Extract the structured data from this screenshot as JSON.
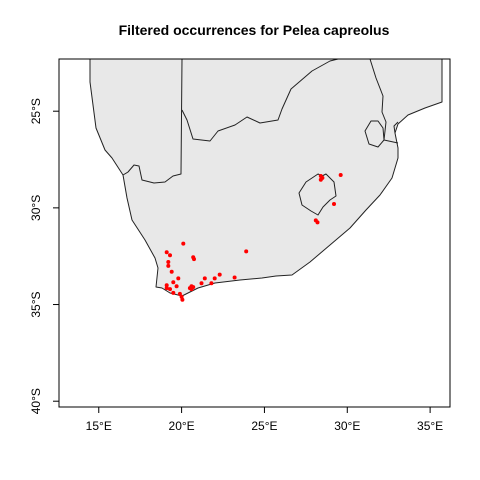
{
  "chart_data": {
    "type": "scatter",
    "title": "Filtered occurrences for Pelea capreolus",
    "xlabel": "",
    "ylabel": "",
    "xlim": [
      12.6,
      36.2
    ],
    "ylim": [
      -40.3,
      -22.3
    ],
    "x_ticks": [
      {
        "value": 15,
        "label": "15°E"
      },
      {
        "value": 20,
        "label": "20°E"
      },
      {
        "value": 25,
        "label": "25°E"
      },
      {
        "value": 30,
        "label": "30°E"
      },
      {
        "value": 35,
        "label": "35°E"
      }
    ],
    "y_ticks": [
      {
        "value": -25,
        "label": "25°S"
      },
      {
        "value": -30,
        "label": "30°S"
      },
      {
        "value": -35,
        "label": "35°S"
      },
      {
        "value": -40,
        "label": "40°S"
      }
    ],
    "land_color": "#e8e8e8",
    "point_color": "#ff0000",
    "grid": false,
    "series": [
      {
        "points": [
          {
            "lon": 20.1,
            "lat": -31.85
          },
          {
            "lon": 23.9,
            "lat": -32.25
          },
          {
            "lon": 19.1,
            "lat": -32.3
          },
          {
            "lon": 19.3,
            "lat": -32.45
          },
          {
            "lon": 19.2,
            "lat": -32.8
          },
          {
            "lon": 19.2,
            "lat": -33.0
          },
          {
            "lon": 19.4,
            "lat": -33.3
          },
          {
            "lon": 20.7,
            "lat": -32.55
          },
          {
            "lon": 20.75,
            "lat": -32.65
          },
          {
            "lon": 19.8,
            "lat": -33.65
          },
          {
            "lon": 19.5,
            "lat": -33.85
          },
          {
            "lon": 19.7,
            "lat": -34.05
          },
          {
            "lon": 19.3,
            "lat": -34.2
          },
          {
            "lon": 19.1,
            "lat": -34.0
          },
          {
            "lon": 19.1,
            "lat": -34.15
          },
          {
            "lon": 19.5,
            "lat": -34.4
          },
          {
            "lon": 19.9,
            "lat": -34.45
          },
          {
            "lon": 20.0,
            "lat": -34.6
          },
          {
            "lon": 20.05,
            "lat": -34.75
          },
          {
            "lon": 20.5,
            "lat": -34.15
          },
          {
            "lon": 20.6,
            "lat": -34.05
          },
          {
            "lon": 20.7,
            "lat": -34.1
          },
          {
            "lon": 20.6,
            "lat": -34.2
          },
          {
            "lon": 21.2,
            "lat": -33.9
          },
          {
            "lon": 21.4,
            "lat": -33.65
          },
          {
            "lon": 21.8,
            "lat": -33.9
          },
          {
            "lon": 22.0,
            "lat": -33.65
          },
          {
            "lon": 22.3,
            "lat": -33.45
          },
          {
            "lon": 23.2,
            "lat": -33.6
          },
          {
            "lon": 28.4,
            "lat": -28.35
          },
          {
            "lon": 28.5,
            "lat": -28.45
          },
          {
            "lon": 28.4,
            "lat": -28.55
          },
          {
            "lon": 29.6,
            "lat": -28.3
          },
          {
            "lon": 29.2,
            "lat": -29.8
          },
          {
            "lon": 28.1,
            "lat": -30.65
          },
          {
            "lon": 28.2,
            "lat": -30.75
          }
        ]
      }
    ]
  }
}
